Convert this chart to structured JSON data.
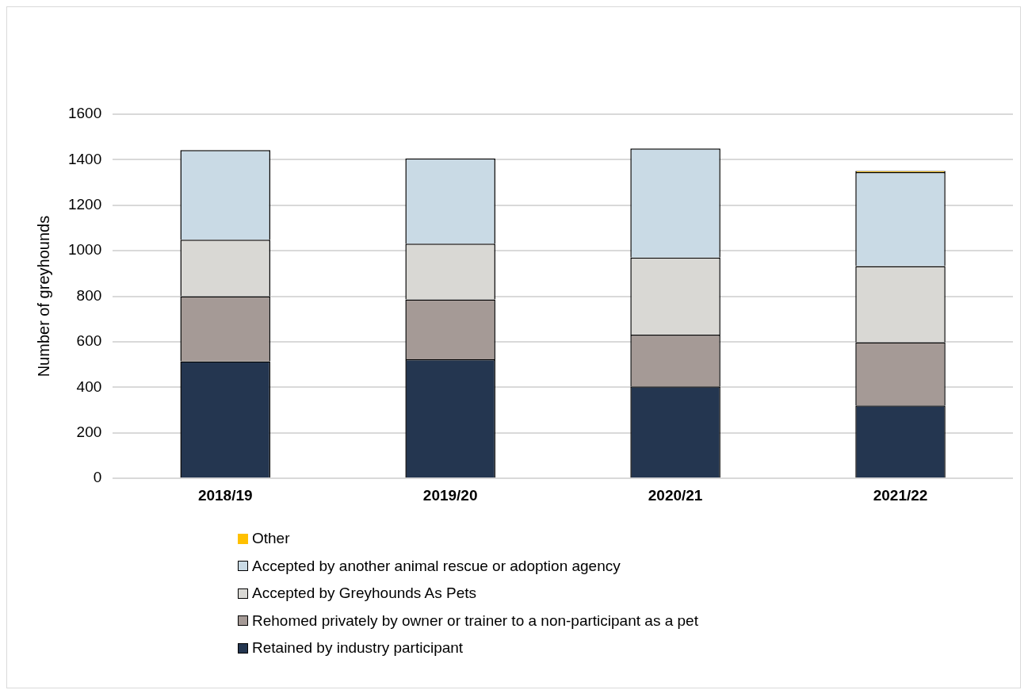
{
  "chart_data": {
    "type": "bar",
    "stacked": true,
    "ylabel": "Number of greyhounds",
    "categories": [
      "2018/19",
      "2019/20",
      "2020/21",
      "2021/22"
    ],
    "series": [
      {
        "name": "Retained by industry participant",
        "color": "#243650",
        "values": [
          515,
          523,
          404,
          320
        ]
      },
      {
        "name": "Rehomed privately by owner or trainer to a non-participant as a pet",
        "color": "#a59a96",
        "values": [
          285,
          263,
          227,
          278
        ]
      },
      {
        "name": "Accepted by Greyhounds As Pets",
        "color": "#d9d8d4",
        "values": [
          249,
          245,
          339,
          335
        ]
      },
      {
        "name": "Accepted by another animal rescue or adoption agency",
        "color": "#c9dae5",
        "values": [
          393,
          375,
          479,
          413
        ]
      },
      {
        "name": "Other",
        "color": "#ffc000",
        "values": [
          0,
          0,
          0,
          5
        ]
      }
    ],
    "ylim": [
      0,
      1600
    ],
    "yticks": [
      0,
      200,
      400,
      600,
      800,
      1000,
      1200,
      1400,
      1600
    ],
    "grid": "y",
    "legend": "bottom"
  }
}
